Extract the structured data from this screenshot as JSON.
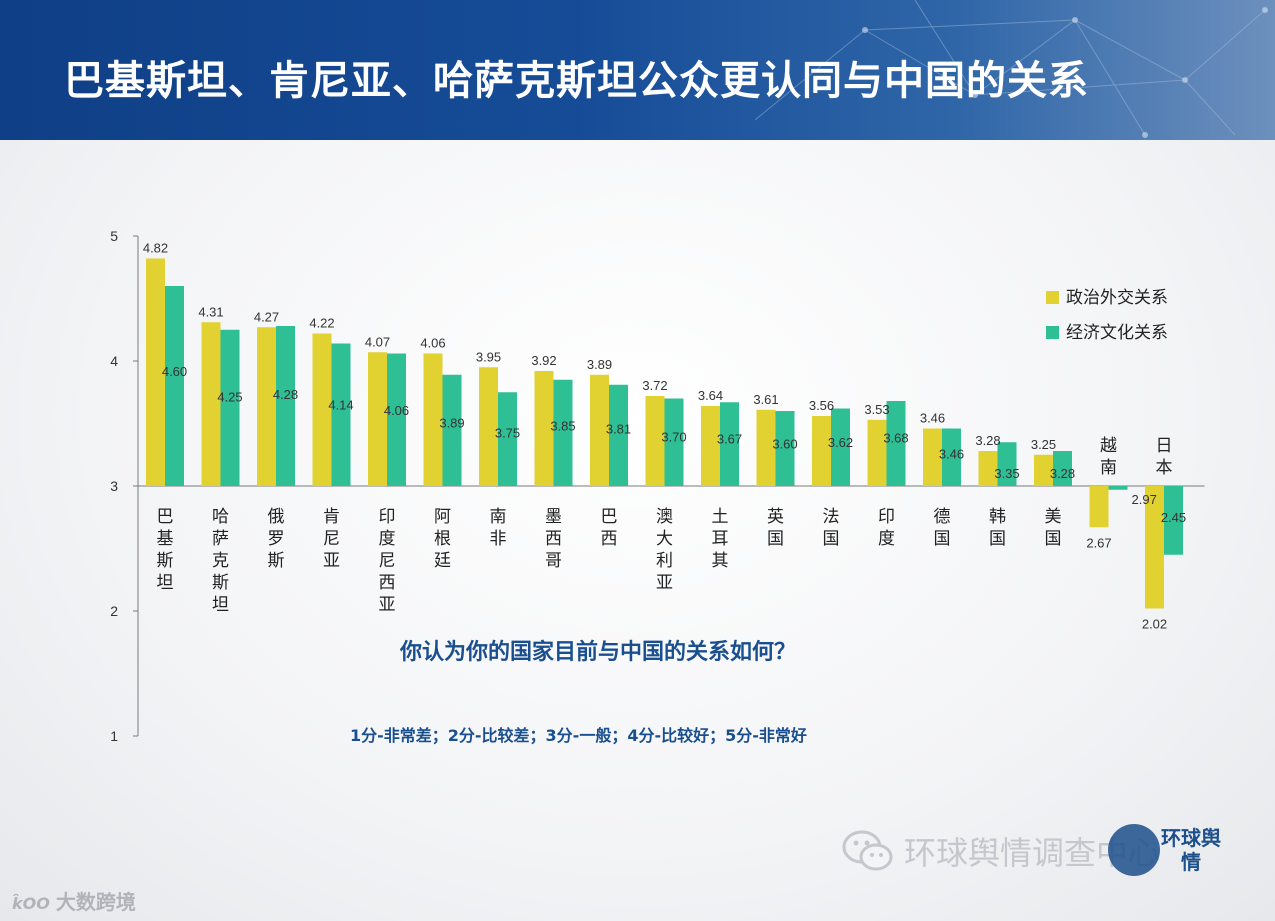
{
  "header": {
    "title": "巴基斯坦、肯尼亚、哈萨克斯坦公众更认同与中国的关系"
  },
  "chart_data": {
    "type": "bar",
    "title": "巴基斯坦、肯尼亚、哈萨克斯坦公众更认同与中国的关系",
    "xlabel": "",
    "ylabel": "",
    "ylim": [
      1,
      5
    ],
    "baseline": 3,
    "yticks": [
      1,
      2,
      3,
      4,
      5
    ],
    "grid": false,
    "legend_position": "right",
    "categories": [
      "巴基斯坦",
      "哈萨克斯坦",
      "俄罗斯",
      "肯尼亚",
      "印度尼西亚",
      "阿根廷",
      "南非",
      "墨西哥",
      "巴西",
      "澳大利亚",
      "土耳其",
      "英国",
      "法国",
      "印度",
      "德国",
      "韩国",
      "美国",
      "越南",
      "日本"
    ],
    "series": [
      {
        "name": "政治外交关系",
        "color": "#e1d231",
        "values": [
          4.82,
          4.31,
          4.27,
          4.22,
          4.07,
          4.06,
          3.95,
          3.92,
          3.89,
          3.72,
          3.64,
          3.61,
          3.56,
          3.53,
          3.46,
          3.28,
          3.25,
          2.67,
          2.02
        ],
        "labels": [
          "4.82",
          "4.31",
          "4.27",
          "4.22",
          "4.07",
          "4.06",
          "3.95",
          "3.92",
          "3.89",
          "3.72",
          "3.64",
          "3.61",
          "3.56",
          "3.53",
          "3.46",
          "3.28",
          "3.25",
          "2.67",
          "2.02"
        ]
      },
      {
        "name": "经济文化关系",
        "color": "#2ebf95",
        "values": [
          4.6,
          4.25,
          4.28,
          4.14,
          4.06,
          3.89,
          3.75,
          3.85,
          3.81,
          3.7,
          3.67,
          3.6,
          3.62,
          3.68,
          3.46,
          3.35,
          3.28,
          2.97,
          2.45
        ],
        "labels": [
          "4.60",
          "4.25",
          "4.28",
          "4.14",
          "4.06",
          "3.89",
          "3.75",
          "3.85",
          "3.81",
          "3.70",
          "3.67",
          "3.60",
          "3.62",
          "3.68",
          "3.46",
          "3.35",
          "3.28",
          "2.97",
          "2.45"
        ]
      }
    ]
  },
  "question": "你认为你的国家目前与中国的关系如何？",
  "scale_note": "1分-非常差；2分-比较差；3分-一般；4分-比较好；5分-非常好",
  "watermarks": {
    "left_logo": "k̂OO",
    "left_text": "大数跨境",
    "right_text": "环球舆情调查中心",
    "seal_text": "环球舆情"
  }
}
